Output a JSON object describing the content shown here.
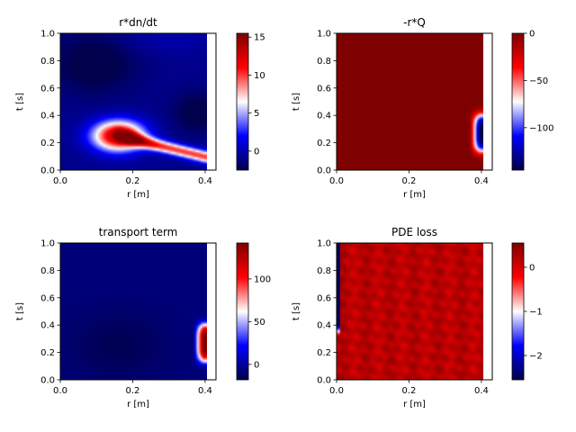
{
  "chart_data": [
    {
      "type": "heatmap",
      "title": "r*dn/dt",
      "xlabel": "r [m]",
      "ylabel": "t [s]",
      "xlim": [
        0.0,
        0.43
      ],
      "ylim": [
        0.0,
        1.0
      ],
      "xticks": [
        0.0,
        0.2,
        0.4
      ],
      "xtick_labels": [
        "0.0",
        "0.2",
        "0.4"
      ],
      "yticks": [
        0.0,
        0.2,
        0.4,
        0.6,
        0.8,
        1.0
      ],
      "ytick_labels": [
        "0.0",
        "0.2",
        "0.4",
        "0.6",
        "0.8",
        "1.0"
      ],
      "colormap": "seismic",
      "colorbar_range": [
        -2.5,
        15.5
      ],
      "colorbar_ticks": [
        0,
        5,
        10,
        15
      ],
      "colorbar_tick_labels": [
        "0",
        "5",
        "10",
        "15"
      ],
      "features": "Red lobe peaking ~15 near r≈0.17 m, t≈0.25 s, tail extending toward r≈0.42 m at t≈0.1 s; blue (~-2) elsewhere, darkest near r≈0.1 m, t≈0.75 s and r≈0.4 m, t≈0.4 s"
    },
    {
      "type": "heatmap",
      "title": "-r*Q",
      "xlabel": "r [m]",
      "ylabel": "t [s]",
      "xlim": [
        0.0,
        0.43
      ],
      "ylim": [
        0.0,
        1.0
      ],
      "xticks": [
        0.0,
        0.2,
        0.4
      ],
      "xtick_labels": [
        "0.0",
        "0.2",
        "0.4"
      ],
      "yticks": [
        0.0,
        0.2,
        0.4,
        0.6,
        0.8,
        1.0
      ],
      "ytick_labels": [
        "0.0",
        "0.2",
        "0.4",
        "0.6",
        "0.8",
        "1.0"
      ],
      "colormap": "seismic",
      "colorbar_range": [
        -145,
        0
      ],
      "colorbar_ticks": [
        -100,
        -50,
        0
      ],
      "colorbar_tick_labels": [
        "−100",
        "−50",
        "0"
      ],
      "features": "Uniform ~0 everywhere; strong negative band (~-140) at r≈0.42 m, t≈0.08–0.45 s"
    },
    {
      "type": "heatmap",
      "title": "transport term",
      "xlabel": "r [m]",
      "ylabel": "t [s]",
      "xlim": [
        0.0,
        0.43
      ],
      "ylim": [
        0.0,
        1.0
      ],
      "xticks": [
        0.0,
        0.2,
        0.4
      ],
      "xtick_labels": [
        "0.0",
        "0.2",
        "0.4"
      ],
      "yticks": [
        0.0,
        0.2,
        0.4,
        0.6,
        0.8,
        1.0
      ],
      "ytick_labels": [
        "0.0",
        "0.2",
        "0.4",
        "0.6",
        "0.8",
        "1.0"
      ],
      "colormap": "seismic",
      "colorbar_range": [
        -18,
        142
      ],
      "colorbar_ticks": [
        0,
        50,
        100
      ],
      "colorbar_tick_labels": [
        "0",
        "50",
        "100"
      ],
      "features": "Mostly ~-15 (dark blue, darkest near r≈0.17 m, t≈0.25 s); strong positive band (~140) at r≈0.42 m, t≈0.1–0.45 s"
    },
    {
      "type": "heatmap",
      "title": "PDE loss",
      "xlabel": "r [m]",
      "ylabel": "t [s]",
      "xlim": [
        0.0,
        0.43
      ],
      "ylim": [
        0.0,
        1.0
      ],
      "xticks": [
        0.0,
        0.2,
        0.4
      ],
      "xtick_labels": [
        "0.0",
        "0.2",
        "0.4"
      ],
      "yticks": [
        0.0,
        0.2,
        0.4,
        0.6,
        0.8,
        1.0
      ],
      "ytick_labels": [
        "0.0",
        "0.2",
        "0.4",
        "0.6",
        "0.8",
        "1.0"
      ],
      "colormap": "seismic",
      "colorbar_range": [
        -2.55,
        0.55
      ],
      "colorbar_ticks": [
        -2,
        -1,
        0
      ],
      "colorbar_tick_labels": [
        "−2",
        "−1",
        "0"
      ],
      "features": "Noisy field around ~0.2 (red) with streaky texture; strong negative (~-2.5) narrow band at r≈0.0 m, t≈0.35–1.0 s"
    }
  ],
  "colors": {
    "seismic_low": "#00004c",
    "seismic_mid": "#ffffff",
    "seismic_high": "#7f0000"
  }
}
